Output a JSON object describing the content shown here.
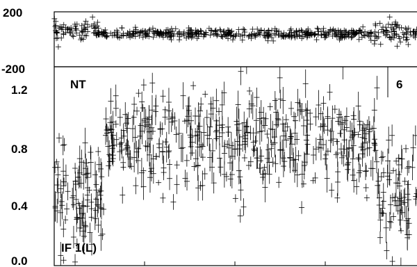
{
  "chart_data": [
    {
      "type": "scatter",
      "panel": "phase",
      "ylim": [
        -200,
        200
      ],
      "yticks": [
        "200",
        "-200"
      ],
      "marker": "plus",
      "x_range": [
        0,
        1
      ],
      "segments": [
        {
          "x_start": 0.0,
          "x_end": 0.12,
          "center": 60,
          "spread": 55
        },
        {
          "x_start": 0.12,
          "x_end": 0.88,
          "center": 40,
          "spread": 30
        },
        {
          "x_start": 0.88,
          "x_end": 1.0,
          "center": 50,
          "spread": 65
        }
      ],
      "n_points": 600
    },
    {
      "type": "scatter",
      "panel": "amplitude",
      "ylim": [
        0.0,
        1.3
      ],
      "yticks": [
        "1.2",
        "0.8",
        "0.4",
        "0.0"
      ],
      "marker": "plus-with-errorbar",
      "x_range": [
        0,
        1
      ],
      "segments": [
        {
          "x_start": 0.0,
          "x_end": 0.14,
          "center": 0.45,
          "spread": 0.3
        },
        {
          "x_start": 0.14,
          "x_end": 0.89,
          "center": 0.82,
          "spread": 0.3
        },
        {
          "x_start": 0.89,
          "x_end": 1.0,
          "center": 0.45,
          "spread": 0.28
        }
      ],
      "n_points": 620
    }
  ],
  "labels": {
    "baseline": "NT",
    "scan": "6",
    "polarization": "IF 1(L)"
  }
}
